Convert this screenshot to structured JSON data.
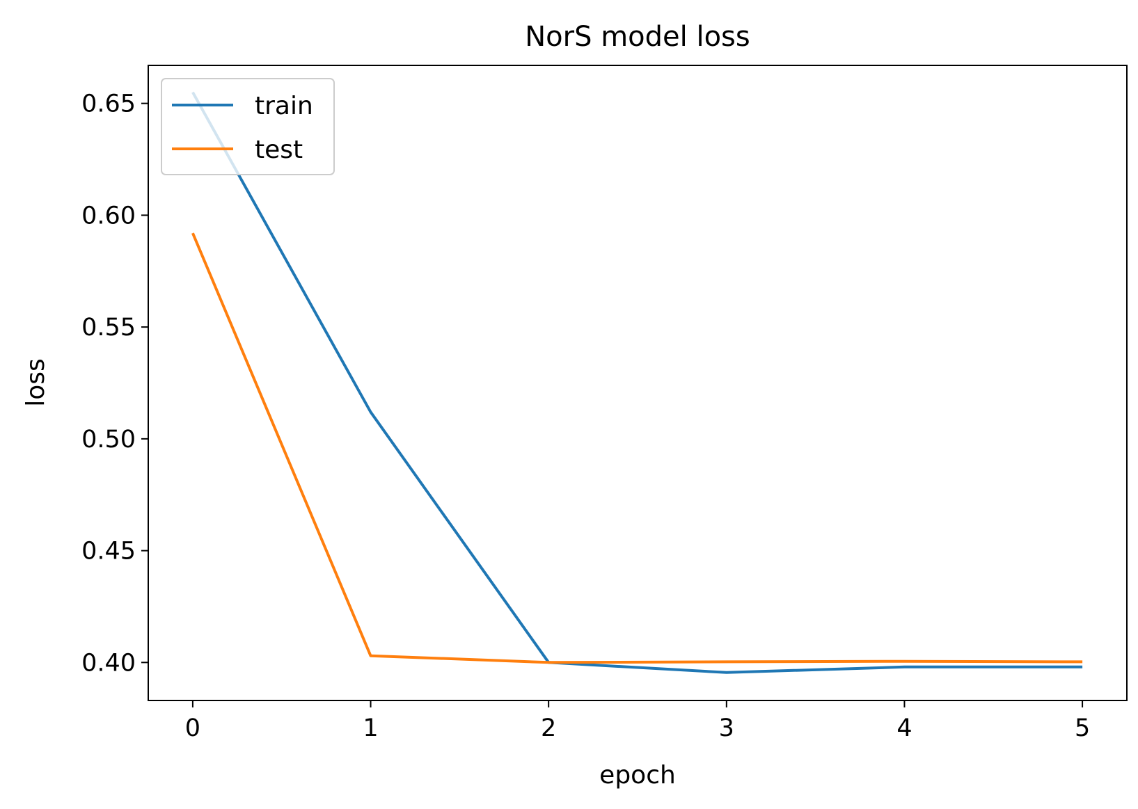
{
  "chart_data": {
    "type": "line",
    "title": "NorS model loss",
    "xlabel": "epoch",
    "ylabel": "loss",
    "x": [
      0,
      1,
      2,
      3,
      4,
      5
    ],
    "xticks": [
      "0",
      "1",
      "2",
      "3",
      "4",
      "5"
    ],
    "yticks": [
      "0.40",
      "0.45",
      "0.50",
      "0.55",
      "0.60",
      "0.65"
    ],
    "xlim": [
      -0.25,
      5.25
    ],
    "ylim": [
      0.383,
      0.667
    ],
    "grid": false,
    "legend_position": "upper left",
    "series": [
      {
        "name": "train",
        "color": "#1f77b4",
        "values": [
          0.655,
          0.512,
          0.4,
          0.3955,
          0.398,
          0.398
        ]
      },
      {
        "name": "test",
        "color": "#ff7f0e",
        "values": [
          0.592,
          0.403,
          0.4,
          0.4003,
          0.4005,
          0.4003
        ]
      }
    ]
  }
}
